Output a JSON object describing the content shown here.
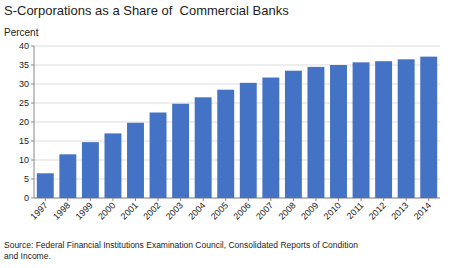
{
  "chart_data": {
    "type": "bar",
    "title": "S-Corporations as a Share of  Commercial Banks",
    "ylabel": "Percent",
    "source": "Source: Federal Financial Institutions Examination Council, Consolidated Reports of Condition\nand Income.",
    "categories": [
      "1997",
      "1998",
      "1999",
      "2000",
      "2001",
      "2002",
      "2003",
      "2004",
      "2005",
      "2006",
      "2007",
      "2008",
      "2009",
      "2010",
      "2011",
      "2012",
      "2013",
      "2014"
    ],
    "values": [
      6.5,
      11.5,
      14.7,
      17.0,
      19.8,
      22.5,
      24.8,
      26.5,
      28.5,
      30.3,
      31.7,
      33.5,
      34.5,
      35.0,
      35.7,
      36.0,
      36.5,
      37.2
    ],
    "color": "#4472c4",
    "ylim": [
      0,
      40
    ],
    "yticks": [
      0,
      5,
      10,
      15,
      20,
      25,
      30,
      35,
      40
    ],
    "grid": true
  }
}
